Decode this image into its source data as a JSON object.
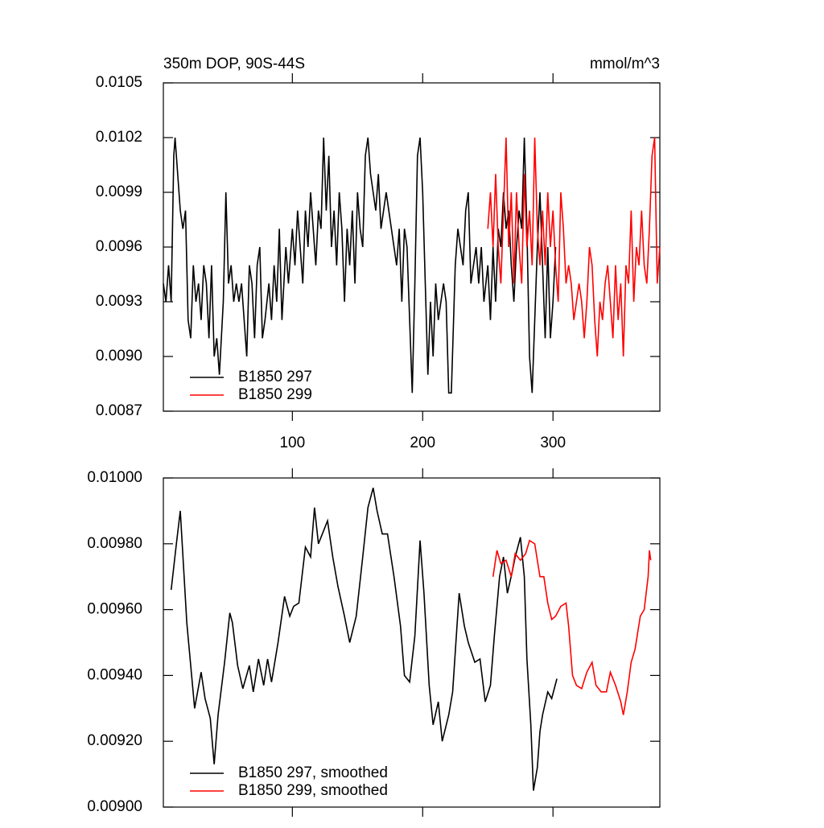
{
  "chart_data": [
    {
      "type": "line",
      "title": "350m DOP, 90S-44S",
      "units": "mmol/m^3",
      "xlim": [
        1,
        382
      ],
      "xticks": [
        100,
        200,
        300
      ],
      "ylim": [
        0.0087,
        0.0105
      ],
      "yticks": [
        0.0105,
        0.0102,
        0.0099,
        0.0096,
        0.0093,
        {
          "value": 0.009,
          "label": "0.0090"
        },
        0.0087
      ],
      "legend": "lower left",
      "series": [
        {
          "name": "B1850 297",
          "color": "#000000",
          "x": [
            1,
            3,
            5,
            7,
            9,
            10,
            12,
            14,
            16,
            18,
            20,
            22,
            24,
            26,
            28,
            30,
            32,
            34,
            36,
            38,
            40,
            42,
            44,
            47,
            49,
            51,
            53,
            55,
            57,
            59,
            61,
            63,
            65,
            67,
            69,
            71,
            73,
            75,
            77,
            79,
            82,
            84,
            86,
            88,
            90,
            92,
            95,
            97,
            100,
            102,
            104,
            106,
            108,
            110,
            112,
            114,
            116,
            118,
            120,
            122,
            124,
            126,
            128,
            130,
            132,
            134,
            136,
            138,
            140,
            142,
            144,
            146,
            148,
            150,
            152,
            154,
            156,
            158,
            160,
            162,
            164,
            166,
            168,
            170,
            172,
            174,
            176,
            178,
            180,
            182,
            184,
            186,
            188,
            190,
            192,
            194,
            196,
            198,
            200,
            202,
            204,
            206,
            208,
            210,
            212,
            214,
            216,
            218,
            220,
            222,
            225,
            227,
            229,
            231,
            233,
            235,
            237,
            239,
            241,
            243,
            245,
            247,
            250,
            252,
            254,
            256,
            258,
            260,
            262,
            264,
            266,
            268,
            270,
            272,
            274,
            276,
            278,
            280,
            282,
            284,
            286,
            288,
            290,
            292,
            294,
            296,
            298,
            300,
            302
          ],
          "values": [
            0.0094,
            0.0093,
            0.0095,
            0.0093,
            0.0101,
            0.0102,
            0.01,
            0.0098,
            0.0097,
            0.0098,
            0.0092,
            0.0091,
            0.0095,
            0.0093,
            0.0094,
            0.0092,
            0.0095,
            0.0094,
            0.0091,
            0.0095,
            0.009,
            0.0091,
            0.0089,
            0.0093,
            0.0099,
            0.0094,
            0.0095,
            0.0093,
            0.0094,
            0.0093,
            0.0094,
            0.0092,
            0.009,
            0.0095,
            0.0094,
            0.0091,
            0.0095,
            0.0096,
            0.0091,
            0.0092,
            0.0094,
            0.0092,
            0.0095,
            0.0093,
            0.0097,
            0.0092,
            0.0096,
            0.0094,
            0.0097,
            0.0095,
            0.0098,
            0.0096,
            0.0094,
            0.0098,
            0.0096,
            0.0099,
            0.0097,
            0.0095,
            0.0098,
            0.0097,
            0.0102,
            0.0098,
            0.0101,
            0.0096,
            0.0098,
            0.0095,
            0.0099,
            0.0097,
            0.0093,
            0.0097,
            0.0095,
            0.0098,
            0.0094,
            0.0099,
            0.0097,
            0.0096,
            0.0101,
            0.0102,
            0.01,
            0.0099,
            0.0098,
            0.01,
            0.0097,
            0.0098,
            0.0099,
            0.0098,
            0.0097,
            0.0096,
            0.0095,
            0.0097,
            0.0093,
            0.0097,
            0.0096,
            0.0092,
            0.0088,
            0.0094,
            0.0101,
            0.0102,
            0.0099,
            0.0094,
            0.0089,
            0.0093,
            0.009,
            0.0094,
            0.0092,
            0.0093,
            0.0094,
            0.0093,
            0.0088,
            0.0088,
            0.0095,
            0.0097,
            0.0096,
            0.0095,
            0.0098,
            0.0099,
            0.0094,
            0.0095,
            0.0096,
            0.0094,
            0.0096,
            0.0093,
            0.0095,
            0.0092,
            0.0096,
            0.0093,
            0.0097,
            0.0096,
            0.0099,
            0.0097,
            0.0098,
            0.0095,
            0.0093,
            0.0096,
            0.0098,
            0.0097,
            0.0102,
            0.0097,
            0.009,
            0.0088,
            0.0092,
            0.0096,
            0.0099,
            0.0095,
            0.0091,
            0.0096,
            0.0091,
            0.0093,
            0.0096
          ]
        },
        {
          "name": "B1850 299",
          "color": "#ff0000",
          "x": [
            250,
            252,
            254,
            256,
            258,
            260,
            262,
            264,
            266,
            268,
            270,
            272,
            274,
            276,
            278,
            280,
            282,
            284,
            286,
            288,
            290,
            292,
            294,
            296,
            298,
            300,
            302,
            304,
            306,
            308,
            310,
            312,
            314,
            316,
            318,
            320,
            322,
            324,
            326,
            328,
            330,
            332,
            334,
            336,
            338,
            340,
            342,
            344,
            346,
            348,
            350,
            352,
            354,
            356,
            358,
            360,
            362,
            364,
            366,
            368,
            370,
            372,
            374,
            376,
            378,
            380,
            382
          ],
          "values": [
            0.0097,
            0.0099,
            0.0096,
            0.01,
            0.0096,
            0.0094,
            0.0098,
            0.0102,
            0.0096,
            0.0099,
            0.0094,
            0.0099,
            0.0096,
            0.0094,
            0.01,
            0.0096,
            0.0098,
            0.0095,
            0.0102,
            0.0097,
            0.0095,
            0.0098,
            0.0095,
            0.0099,
            0.0096,
            0.0098,
            0.0095,
            0.0093,
            0.0099,
            0.0097,
            0.0094,
            0.0095,
            0.0094,
            0.0092,
            0.0093,
            0.0094,
            0.0093,
            0.0091,
            0.0093,
            0.0096,
            0.0095,
            0.0092,
            0.009,
            0.0093,
            0.0092,
            0.0094,
            0.0095,
            0.0093,
            0.0091,
            0.0095,
            0.0092,
            0.0094,
            0.009,
            0.0095,
            0.0094,
            0.0098,
            0.0093,
            0.0096,
            0.0095,
            0.0098,
            0.0095,
            0.0094,
            0.0097,
            0.0101,
            0.0102,
            0.0094,
            0.0096
          ]
        }
      ]
    },
    {
      "type": "line",
      "xlim": [
        1,
        382
      ],
      "xticks": [
        100,
        200,
        300
      ],
      "ylim": [
        0.009,
        0.01
      ],
      "yticks": [
        {
          "value": 0.01,
          "label": "0.01000"
        },
        {
          "value": 0.0098,
          "label": "0.00980"
        },
        {
          "value": 0.0096,
          "label": "0.00960"
        },
        {
          "value": 0.0094,
          "label": "0.00940"
        },
        {
          "value": 0.0092,
          "label": "0.00920"
        },
        {
          "value": 0.009,
          "label": "0.00900"
        }
      ],
      "legend": "lower left",
      "series": [
        {
          "name": "B1850 297, smoothed",
          "color": "#000000",
          "x": [
            7,
            11,
            14,
            19,
            25,
            30,
            33,
            37,
            40,
            43,
            48,
            52,
            54,
            58,
            62,
            67,
            70,
            74,
            78,
            81,
            84,
            89,
            94,
            98,
            101,
            105,
            110,
            114,
            117,
            120,
            123,
            127,
            131,
            135,
            140,
            144,
            149,
            154,
            158,
            162,
            165,
            169,
            173,
            178,
            183,
            186,
            190,
            194,
            198,
            201,
            205,
            208,
            212,
            215,
            220,
            223,
            228,
            232,
            235,
            240,
            244,
            248,
            252,
            255,
            259,
            262,
            265,
            269,
            271,
            275,
            278,
            280,
            283,
            285,
            288,
            290,
            292,
            296,
            299,
            303
          ],
          "values": [
            0.00966,
            0.0098,
            0.0099,
            0.00956,
            0.0093,
            0.00941,
            0.00933,
            0.00927,
            0.00913,
            0.00928,
            0.00944,
            0.00959,
            0.00956,
            0.00943,
            0.00936,
            0.00943,
            0.00935,
            0.00945,
            0.00937,
            0.00945,
            0.00938,
            0.0095,
            0.00964,
            0.00958,
            0.00961,
            0.00962,
            0.00979,
            0.00976,
            0.00991,
            0.0098,
            0.00983,
            0.00987,
            0.00976,
            0.00967,
            0.00958,
            0.0095,
            0.00958,
            0.00976,
            0.00991,
            0.00997,
            0.0099,
            0.00983,
            0.00983,
            0.0097,
            0.00955,
            0.0094,
            0.00938,
            0.00952,
            0.00981,
            0.00965,
            0.00937,
            0.00925,
            0.00932,
            0.0092,
            0.00928,
            0.00935,
            0.00965,
            0.00955,
            0.0095,
            0.00944,
            0.00945,
            0.00932,
            0.00937,
            0.00952,
            0.0097,
            0.00976,
            0.00965,
            0.00972,
            0.00976,
            0.00982,
            0.0097,
            0.00945,
            0.00925,
            0.00905,
            0.00912,
            0.00923,
            0.00928,
            0.00935,
            0.00933,
            0.00939
          ]
        },
        {
          "name": "B1850 299, smoothed",
          "color": "#ff0000",
          "x": [
            254,
            257,
            260,
            264,
            268,
            271,
            275,
            279,
            282,
            286,
            290,
            293,
            296,
            299,
            302,
            306,
            310,
            312,
            315,
            318,
            322,
            326,
            330,
            333,
            337,
            341,
            344,
            348,
            352,
            354,
            357,
            360,
            363,
            367,
            370,
            373,
            374,
            375
          ],
          "values": [
            0.0097,
            0.00978,
            0.00974,
            0.00975,
            0.0097,
            0.00977,
            0.00975,
            0.00977,
            0.00981,
            0.0098,
            0.0097,
            0.0097,
            0.00962,
            0.00957,
            0.00958,
            0.00961,
            0.00962,
            0.00955,
            0.0094,
            0.00937,
            0.00936,
            0.00941,
            0.00944,
            0.00937,
            0.00935,
            0.00935,
            0.00941,
            0.00937,
            0.00932,
            0.00928,
            0.00935,
            0.00944,
            0.00948,
            0.00958,
            0.0096,
            0.0097,
            0.00978,
            0.00975
          ]
        }
      ]
    }
  ]
}
